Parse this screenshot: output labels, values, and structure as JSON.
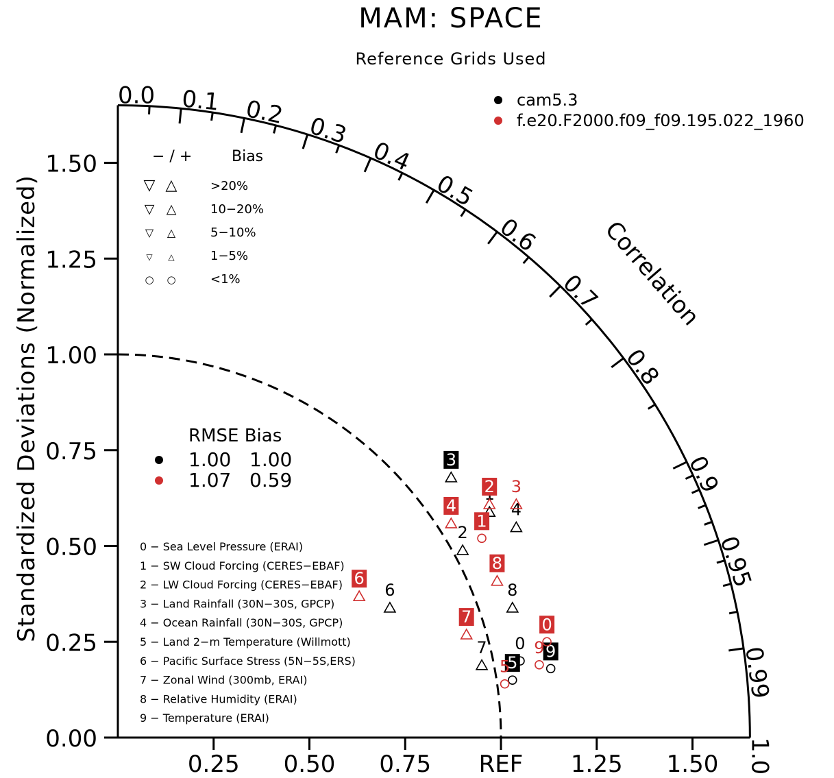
{
  "chart_data": {
    "type": "taylor_diagram",
    "title": "MAM: SPACE",
    "subtitle": "Reference Grids Used",
    "ylabel": "Standardized Deviations (Normalized)",
    "xaxis_ticks": [
      "0.25",
      "0.50",
      "0.75",
      "REF",
      "1.25",
      "1.50"
    ],
    "xaxis_tick_values": [
      0.25,
      0.5,
      0.75,
      1.0,
      1.25,
      1.5
    ],
    "yaxis_ticks": [
      "0.00",
      "0.25",
      "0.50",
      "0.75",
      "1.00",
      "1.25",
      "1.50"
    ],
    "yaxis_tick_values": [
      0.0,
      0.25,
      0.5,
      0.75,
      1.0,
      1.25,
      1.5
    ],
    "std_max": 1.65,
    "correlation_label": "Correlation",
    "correlation_ticks": [
      "0.0",
      "0.1",
      "0.2",
      "0.3",
      "0.4",
      "0.5",
      "0.6",
      "0.7",
      "0.8",
      "0.9",
      "0.95",
      "0.99",
      "1.0"
    ],
    "correlation_tick_values": [
      0.0,
      0.1,
      0.2,
      0.3,
      0.4,
      0.5,
      0.6,
      0.7,
      0.8,
      0.9,
      0.95,
      0.99,
      1.0
    ],
    "correlation_minor_ticks": [
      0.05,
      0.15,
      0.25,
      0.35,
      0.45,
      0.55,
      0.65,
      0.75,
      0.85,
      0.91,
      0.92,
      0.93,
      0.94,
      0.96,
      0.97,
      0.98
    ],
    "reference_std": 1.0,
    "legend": {
      "position": "top-right",
      "series": [
        {
          "name": "cam5.3",
          "color": "#000000"
        },
        {
          "name": "f.e20.F2000.f09_f09.195.022_1960",
          "color": "#d03030"
        }
      ]
    },
    "bias_key": {
      "header_signs": "− / +",
      "header_label": "Bias",
      "rows": [
        {
          "label": ">20%",
          "neg": "▽",
          "pos": "△",
          "size": 22
        },
        {
          "label": "10−20%",
          "neg": "▽",
          "pos": "△",
          "size": 19
        },
        {
          "label": "5−10%",
          "neg": "▽",
          "pos": "△",
          "size": 16
        },
        {
          "label": "1−5%",
          "neg": "▽",
          "pos": "△",
          "size": 12
        },
        {
          "label": "<1%",
          "neg": "○",
          "pos": "○",
          "size": 15
        }
      ]
    },
    "rmse_table": {
      "header": "RMSE Bias",
      "rows": [
        {
          "color": "#000000",
          "rmse": "1.00",
          "bias": "1.00"
        },
        {
          "color": "#d03030",
          "rmse": "1.07",
          "bias": "0.59"
        }
      ]
    },
    "variables": [
      "0 − Sea Level Pressure (ERAI)",
      "1 − SW Cloud Forcing (CERES−EBAF)",
      "2 − LW Cloud Forcing (CERES−EBAF)",
      "3 − Land Rainfall (30N−30S, GPCP)",
      "4 − Ocean Rainfall (30N−30S, GPCP)",
      "5 − Land 2−m Temperature (Willmott)",
      "6 − Pacific Surface Stress (5N−5S,ERS)",
      "7 − Zonal Wind (300mb, ERAI)",
      "8 − Relative Humidity (ERAI)",
      "9 − Temperature (ERAI)"
    ],
    "series": [
      {
        "name": "cam5.3",
        "color": "#000000",
        "points": [
          {
            "id": "0",
            "x": 1.05,
            "y": 0.2,
            "marker": "circle",
            "boxed": false
          },
          {
            "id": "1",
            "x": 0.97,
            "y": 0.59,
            "marker": "triangle_up",
            "boxed": false
          },
          {
            "id": "2",
            "x": 0.9,
            "y": 0.49,
            "marker": "triangle_up",
            "boxed": false
          },
          {
            "id": "3",
            "x": 0.87,
            "y": 0.68,
            "marker": "triangle_up",
            "boxed": true
          },
          {
            "id": "4",
            "x": 1.04,
            "y": 0.55,
            "marker": "triangle_up",
            "boxed": false
          },
          {
            "id": "5",
            "x": 1.03,
            "y": 0.15,
            "marker": "circle",
            "boxed": true
          },
          {
            "id": "6",
            "x": 0.71,
            "y": 0.34,
            "marker": "triangle_up",
            "boxed": false
          },
          {
            "id": "7",
            "x": 0.95,
            "y": 0.19,
            "marker": "triangle_up",
            "boxed": false
          },
          {
            "id": "8",
            "x": 1.03,
            "y": 0.34,
            "marker": "triangle_up",
            "boxed": false
          },
          {
            "id": "9",
            "x": 1.13,
            "y": 0.18,
            "marker": "circle",
            "boxed": true
          }
        ]
      },
      {
        "name": "f.e20.F2000.f09_f09.195.022_1960",
        "color": "#d03030",
        "points": [
          {
            "id": "0",
            "x": 1.12,
            "y": 0.25,
            "marker": "circle",
            "boxed": true
          },
          {
            "id": "1",
            "x": 0.95,
            "y": 0.52,
            "marker": "circle",
            "boxed": true
          },
          {
            "id": "2",
            "x": 0.97,
            "y": 0.61,
            "marker": "triangle_up",
            "boxed": true
          },
          {
            "id": "3",
            "x": 1.04,
            "y": 0.61,
            "marker": "triangle_up",
            "boxed": false
          },
          {
            "id": "4",
            "x": 0.87,
            "y": 0.56,
            "marker": "triangle_up",
            "boxed": true
          },
          {
            "id": "5",
            "x": 1.01,
            "y": 0.14,
            "marker": "circle",
            "boxed": false
          },
          {
            "id": "6",
            "x": 0.63,
            "y": 0.37,
            "marker": "triangle_up",
            "boxed": true
          },
          {
            "id": "7",
            "x": 0.91,
            "y": 0.27,
            "marker": "triangle_up",
            "boxed": true
          },
          {
            "id": "8",
            "x": 0.99,
            "y": 0.41,
            "marker": "triangle_up",
            "boxed": true
          },
          {
            "id": "9",
            "x": 1.1,
            "y": 0.19,
            "marker": "circle",
            "boxed": false
          }
        ]
      }
    ]
  }
}
